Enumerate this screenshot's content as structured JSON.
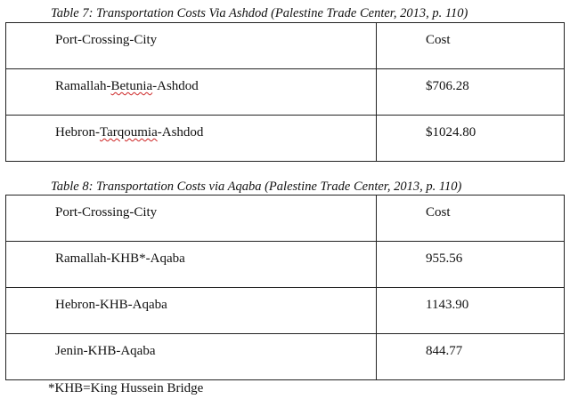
{
  "table7": {
    "caption": "Table 7: Transportation Costs Via Ashdod (Palestine Trade Center, 2013, p. 110)",
    "header": {
      "route": "Port-Crossing-City",
      "cost": "Cost"
    },
    "rows": [
      {
        "route_pre": "Ramallah-",
        "route_mark": "Betunia",
        "route_post": "-Ashdod",
        "cost": "$706.28"
      },
      {
        "route_pre": "Hebron-",
        "route_mark": "Tarqoumia",
        "route_post": "-Ashdod",
        "cost": "$1024.80"
      }
    ]
  },
  "table8": {
    "caption": "Table 8: Transportation Costs via Aqaba (Palestine Trade Center, 2013, p. 110)",
    "header": {
      "route": "Port-Crossing-City",
      "cost": "Cost"
    },
    "rows": [
      {
        "route": "Ramallah-KHB*-Aqaba",
        "cost": "955.56"
      },
      {
        "route": "Hebron-KHB-Aqaba",
        "cost": "1143.90"
      },
      {
        "route": "Jenin-KHB-Aqaba",
        "cost": "844.77"
      }
    ]
  },
  "footnote": "*KHB=King Hussein Bridge"
}
